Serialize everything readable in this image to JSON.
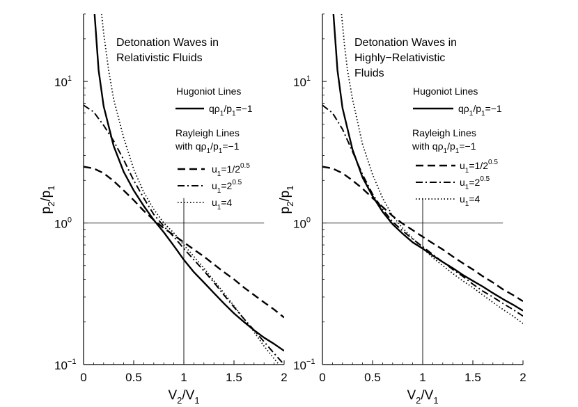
{
  "chart_data": [
    {
      "type": "line",
      "title_lines": [
        "Detonation Waves in",
        "Relativistic Fluids"
      ],
      "xlabel": {
        "main": "V",
        "sub1": "2",
        "mid": "/V",
        "sub2": "1"
      },
      "ylabel": {
        "main": "p",
        "sub1": "2",
        "mid": "/p",
        "sub2": "1"
      },
      "xscale": "linear",
      "yscale": "log",
      "xlim": [
        0,
        2
      ],
      "ylim": [
        0.1,
        30
      ],
      "xticks": [
        {
          "value": 0,
          "label": "0"
        },
        {
          "value": 0.5,
          "label": "0.5"
        },
        {
          "value": 1,
          "label": "1"
        },
        {
          "value": 1.5,
          "label": "1.5"
        },
        {
          "value": 2,
          "label": "2"
        }
      ],
      "yticks": [
        {
          "value": 0.1,
          "base": "10",
          "exp": "−1"
        },
        {
          "value": 1,
          "base": "10",
          "exp": "0"
        },
        {
          "value": 10,
          "base": "10",
          "exp": "1"
        }
      ],
      "reference_lines": {
        "horizontal": {
          "y": 1,
          "x_end": 1.8
        },
        "vertical": {
          "x": 1,
          "y_end": 1.5
        }
      },
      "legend": {
        "hugoniot_header": "Hugoniot Lines",
        "hugoniot_label": {
          "a": "qρ",
          "b": "1",
          "c": "/p",
          "d": "1",
          "e": "=−1"
        },
        "rayleigh_header": "Rayleigh Lines",
        "rayleigh_sub": {
          "a": "with qρ",
          "b": "1",
          "c": "/p",
          "d": "1",
          "e": "=−1"
        },
        "entries": [
          {
            "u": "u",
            "sub": "1",
            "eq": "=1/2",
            "sup": "0.5"
          },
          {
            "u": "u",
            "sub": "1",
            "eq": "=2",
            "sup": "0.5"
          },
          {
            "u": "u",
            "sub": "1",
            "eq": "=4",
            "sup": ""
          }
        ]
      },
      "series": [
        {
          "name": "Hugoniot qρ1/p1=-1",
          "style": "solid",
          "width": 2.4,
          "x": [
            0.11,
            0.15,
            0.2,
            0.3,
            0.4,
            0.5,
            0.6,
            0.7,
            0.8,
            0.9,
            1.0,
            1.1,
            1.2,
            1.3,
            1.4,
            1.5,
            1.6,
            1.7,
            1.8,
            1.9,
            2.0
          ],
          "y": [
            30,
            12,
            6.7,
            3.5,
            2.3,
            1.7,
            1.32,
            1.05,
            0.86,
            0.69,
            0.55,
            0.45,
            0.38,
            0.32,
            0.27,
            0.23,
            0.2,
            0.175,
            0.155,
            0.14,
            0.125
          ]
        },
        {
          "name": "Rayleigh u1=1/2^0.5",
          "style": "dashed",
          "width": 2.4,
          "x": [
            0,
            0.1,
            0.2,
            0.3,
            0.4,
            0.5,
            0.6,
            0.7,
            0.8,
            0.9,
            1.0,
            1.1,
            1.2,
            1.3,
            1.4,
            1.5,
            1.6,
            1.7,
            1.8,
            1.9,
            2.0
          ],
          "y": [
            2.5,
            2.43,
            2.25,
            1.98,
            1.7,
            1.45,
            1.22,
            1.05,
            0.92,
            0.82,
            0.73,
            0.65,
            0.58,
            0.51,
            0.45,
            0.4,
            0.35,
            0.31,
            0.275,
            0.245,
            0.215
          ]
        },
        {
          "name": "Rayleigh u1=2^0.5",
          "style": "dashdot",
          "width": 2,
          "x": [
            0,
            0.1,
            0.2,
            0.3,
            0.4,
            0.5,
            0.6,
            0.7,
            0.8,
            0.9,
            1.0,
            1.1,
            1.2,
            1.3,
            1.4,
            1.5,
            1.6,
            1.7,
            1.8,
            1.9,
            2.0
          ],
          "y": [
            6.8,
            6.1,
            4.9,
            3.8,
            2.8,
            2.0,
            1.5,
            1.15,
            0.95,
            0.8,
            0.66,
            0.55,
            0.46,
            0.38,
            0.31,
            0.255,
            0.21,
            0.175,
            0.145,
            0.12,
            0.1
          ]
        },
        {
          "name": "Rayleigh u1=4",
          "style": "dotted",
          "width": 1.8,
          "x": [
            0.18,
            0.2,
            0.25,
            0.3,
            0.4,
            0.5,
            0.6,
            0.7,
            0.8,
            0.9,
            1.0,
            1.1,
            1.2,
            1.3,
            1.4,
            1.5,
            1.6,
            1.7,
            1.8,
            1.9,
            1.95
          ],
          "y": [
            30,
            22,
            12,
            7.5,
            4.0,
            2.4,
            1.65,
            1.25,
            1.0,
            0.85,
            0.7,
            0.58,
            0.48,
            0.39,
            0.32,
            0.26,
            0.21,
            0.17,
            0.135,
            0.11,
            0.1
          ]
        }
      ]
    },
    {
      "type": "line",
      "title_lines": [
        "Detonation Waves in",
        "Highly−Relativistic",
        "Fluids"
      ],
      "xlabel": {
        "main": "V",
        "sub1": "2",
        "mid": "/V",
        "sub2": "1"
      },
      "ylabel": {
        "main": "p",
        "sub1": "2",
        "mid": "/p",
        "sub2": "1"
      },
      "xscale": "linear",
      "yscale": "log",
      "xlim": [
        0,
        2
      ],
      "ylim": [
        0.1,
        30
      ],
      "xticks": [
        {
          "value": 0,
          "label": "0"
        },
        {
          "value": 0.5,
          "label": "0.5"
        },
        {
          "value": 1,
          "label": "1"
        },
        {
          "value": 1.5,
          "label": "1.5"
        },
        {
          "value": 2,
          "label": "2"
        }
      ],
      "yticks": [
        {
          "value": 0.1,
          "base": "10",
          "exp": "−1"
        },
        {
          "value": 1,
          "base": "10",
          "exp": "0"
        },
        {
          "value": 10,
          "base": "10",
          "exp": "1"
        }
      ],
      "reference_lines": {
        "horizontal": {
          "y": 1,
          "x_end": 1.8
        },
        "vertical": {
          "x": 1,
          "y_end": 1.5
        }
      },
      "legend": {
        "hugoniot_header": "Hugoniot Lines",
        "hugoniot_label": {
          "a": "qρ",
          "b": "1",
          "c": "/p",
          "d": "1",
          "e": "=−1"
        },
        "rayleigh_header": "Rayleigh Lines",
        "rayleigh_sub": {
          "a": "with qρ",
          "b": "1",
          "c": "/p",
          "d": "1",
          "e": "=−1"
        },
        "entries": [
          {
            "u": "u",
            "sub": "1",
            "eq": "=1/2",
            "sup": "0.5"
          },
          {
            "u": "u",
            "sub": "1",
            "eq": "=2",
            "sup": "0.5"
          },
          {
            "u": "u",
            "sub": "1",
            "eq": "=4",
            "sup": ""
          }
        ]
      },
      "series": [
        {
          "name": "Hugoniot qρ1/p1=-1",
          "style": "solid",
          "width": 2.4,
          "x": [
            0.11,
            0.15,
            0.2,
            0.3,
            0.4,
            0.5,
            0.6,
            0.7,
            0.8,
            0.9,
            1.0,
            1.1,
            1.2,
            1.3,
            1.4,
            1.5,
            1.6,
            1.7,
            1.8,
            1.9,
            2.0
          ],
          "y": [
            30,
            12,
            6.5,
            3.3,
            2.1,
            1.55,
            1.2,
            0.98,
            0.84,
            0.73,
            0.66,
            0.59,
            0.53,
            0.48,
            0.43,
            0.39,
            0.355,
            0.32,
            0.29,
            0.265,
            0.24
          ]
        },
        {
          "name": "Rayleigh u1=1/2^0.5",
          "style": "dashed",
          "width": 2.4,
          "x": [
            0,
            0.1,
            0.2,
            0.3,
            0.4,
            0.5,
            0.6,
            0.7,
            0.8,
            0.9,
            1.0,
            1.1,
            1.2,
            1.3,
            1.4,
            1.5,
            1.6,
            1.7,
            1.8,
            1.9,
            2.0
          ],
          "y": [
            2.5,
            2.43,
            2.25,
            2.0,
            1.75,
            1.5,
            1.3,
            1.12,
            0.99,
            0.89,
            0.8,
            0.72,
            0.65,
            0.58,
            0.52,
            0.47,
            0.42,
            0.38,
            0.34,
            0.31,
            0.28
          ]
        },
        {
          "name": "Rayleigh u1=2^0.5",
          "style": "dashdot",
          "width": 2,
          "x": [
            0,
            0.1,
            0.2,
            0.3,
            0.4,
            0.5,
            0.6,
            0.7,
            0.8,
            0.9,
            1.0,
            1.1,
            1.2,
            1.3,
            1.4,
            1.5,
            1.6,
            1.7,
            1.8,
            1.9,
            2.0
          ],
          "y": [
            6.8,
            6.0,
            4.6,
            3.2,
            2.2,
            1.6,
            1.25,
            1.02,
            0.88,
            0.77,
            0.68,
            0.6,
            0.53,
            0.47,
            0.42,
            0.37,
            0.33,
            0.3,
            0.27,
            0.245,
            0.22
          ]
        },
        {
          "name": "Rayleigh u1=4",
          "style": "dotted",
          "width": 1.8,
          "x": [
            0.19,
            0.22,
            0.25,
            0.3,
            0.4,
            0.5,
            0.6,
            0.7,
            0.8,
            0.9,
            1.0,
            1.1,
            1.2,
            1.3,
            1.4,
            1.5,
            1.6,
            1.7,
            1.8,
            1.9,
            2.0
          ],
          "y": [
            30,
            18,
            12,
            7.5,
            3.6,
            2.2,
            1.5,
            1.12,
            0.92,
            0.78,
            0.66,
            0.57,
            0.5,
            0.44,
            0.39,
            0.35,
            0.31,
            0.275,
            0.245,
            0.22,
            0.195
          ]
        }
      ]
    }
  ]
}
